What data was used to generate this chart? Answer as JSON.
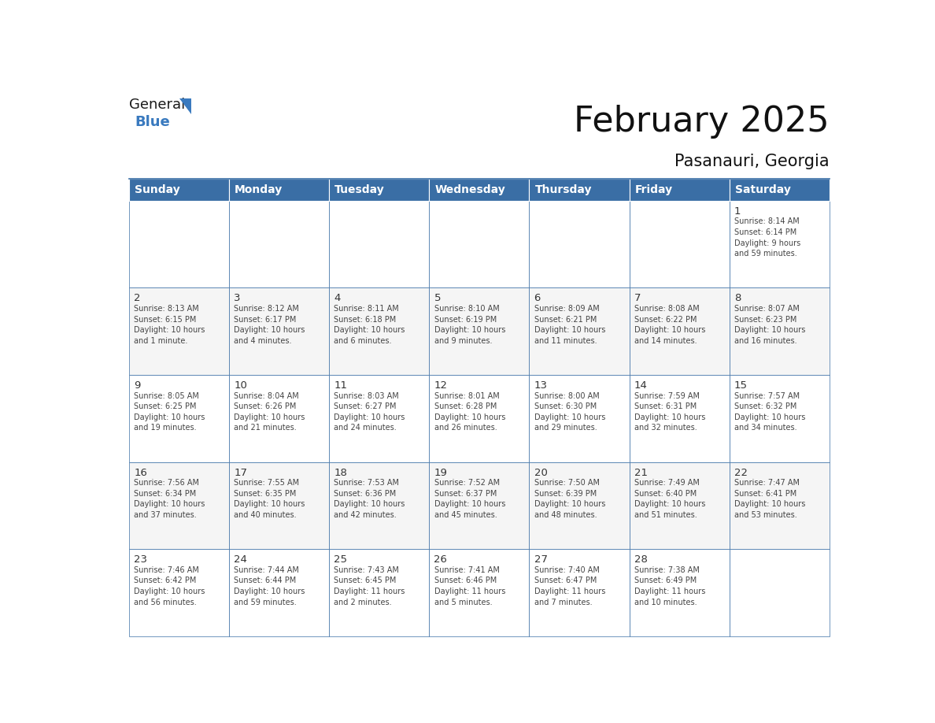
{
  "title": "February 2025",
  "subtitle": "Pasanauri, Georgia",
  "header_color": "#3a6ea5",
  "header_text_color": "#ffffff",
  "cell_bg_even": "#f5f5f5",
  "cell_bg_odd": "#ffffff",
  "border_color": "#3a6ea5",
  "day_number_color": "#333333",
  "info_text_color": "#444444",
  "day_headers": [
    "Sunday",
    "Monday",
    "Tuesday",
    "Wednesday",
    "Thursday",
    "Friday",
    "Saturday"
  ],
  "weeks": [
    [
      {
        "day": "",
        "info": ""
      },
      {
        "day": "",
        "info": ""
      },
      {
        "day": "",
        "info": ""
      },
      {
        "day": "",
        "info": ""
      },
      {
        "day": "",
        "info": ""
      },
      {
        "day": "",
        "info": ""
      },
      {
        "day": "1",
        "info": "Sunrise: 8:14 AM\nSunset: 6:14 PM\nDaylight: 9 hours\nand 59 minutes."
      }
    ],
    [
      {
        "day": "2",
        "info": "Sunrise: 8:13 AM\nSunset: 6:15 PM\nDaylight: 10 hours\nand 1 minute."
      },
      {
        "day": "3",
        "info": "Sunrise: 8:12 AM\nSunset: 6:17 PM\nDaylight: 10 hours\nand 4 minutes."
      },
      {
        "day": "4",
        "info": "Sunrise: 8:11 AM\nSunset: 6:18 PM\nDaylight: 10 hours\nand 6 minutes."
      },
      {
        "day": "5",
        "info": "Sunrise: 8:10 AM\nSunset: 6:19 PM\nDaylight: 10 hours\nand 9 minutes."
      },
      {
        "day": "6",
        "info": "Sunrise: 8:09 AM\nSunset: 6:21 PM\nDaylight: 10 hours\nand 11 minutes."
      },
      {
        "day": "7",
        "info": "Sunrise: 8:08 AM\nSunset: 6:22 PM\nDaylight: 10 hours\nand 14 minutes."
      },
      {
        "day": "8",
        "info": "Sunrise: 8:07 AM\nSunset: 6:23 PM\nDaylight: 10 hours\nand 16 minutes."
      }
    ],
    [
      {
        "day": "9",
        "info": "Sunrise: 8:05 AM\nSunset: 6:25 PM\nDaylight: 10 hours\nand 19 minutes."
      },
      {
        "day": "10",
        "info": "Sunrise: 8:04 AM\nSunset: 6:26 PM\nDaylight: 10 hours\nand 21 minutes."
      },
      {
        "day": "11",
        "info": "Sunrise: 8:03 AM\nSunset: 6:27 PM\nDaylight: 10 hours\nand 24 minutes."
      },
      {
        "day": "12",
        "info": "Sunrise: 8:01 AM\nSunset: 6:28 PM\nDaylight: 10 hours\nand 26 minutes."
      },
      {
        "day": "13",
        "info": "Sunrise: 8:00 AM\nSunset: 6:30 PM\nDaylight: 10 hours\nand 29 minutes."
      },
      {
        "day": "14",
        "info": "Sunrise: 7:59 AM\nSunset: 6:31 PM\nDaylight: 10 hours\nand 32 minutes."
      },
      {
        "day": "15",
        "info": "Sunrise: 7:57 AM\nSunset: 6:32 PM\nDaylight: 10 hours\nand 34 minutes."
      }
    ],
    [
      {
        "day": "16",
        "info": "Sunrise: 7:56 AM\nSunset: 6:34 PM\nDaylight: 10 hours\nand 37 minutes."
      },
      {
        "day": "17",
        "info": "Sunrise: 7:55 AM\nSunset: 6:35 PM\nDaylight: 10 hours\nand 40 minutes."
      },
      {
        "day": "18",
        "info": "Sunrise: 7:53 AM\nSunset: 6:36 PM\nDaylight: 10 hours\nand 42 minutes."
      },
      {
        "day": "19",
        "info": "Sunrise: 7:52 AM\nSunset: 6:37 PM\nDaylight: 10 hours\nand 45 minutes."
      },
      {
        "day": "20",
        "info": "Sunrise: 7:50 AM\nSunset: 6:39 PM\nDaylight: 10 hours\nand 48 minutes."
      },
      {
        "day": "21",
        "info": "Sunrise: 7:49 AM\nSunset: 6:40 PM\nDaylight: 10 hours\nand 51 minutes."
      },
      {
        "day": "22",
        "info": "Sunrise: 7:47 AM\nSunset: 6:41 PM\nDaylight: 10 hours\nand 53 minutes."
      }
    ],
    [
      {
        "day": "23",
        "info": "Sunrise: 7:46 AM\nSunset: 6:42 PM\nDaylight: 10 hours\nand 56 minutes."
      },
      {
        "day": "24",
        "info": "Sunrise: 7:44 AM\nSunset: 6:44 PM\nDaylight: 10 hours\nand 59 minutes."
      },
      {
        "day": "25",
        "info": "Sunrise: 7:43 AM\nSunset: 6:45 PM\nDaylight: 11 hours\nand 2 minutes."
      },
      {
        "day": "26",
        "info": "Sunrise: 7:41 AM\nSunset: 6:46 PM\nDaylight: 11 hours\nand 5 minutes."
      },
      {
        "day": "27",
        "info": "Sunrise: 7:40 AM\nSunset: 6:47 PM\nDaylight: 11 hours\nand 7 minutes."
      },
      {
        "day": "28",
        "info": "Sunrise: 7:38 AM\nSunset: 6:49 PM\nDaylight: 11 hours\nand 10 minutes."
      },
      {
        "day": "",
        "info": ""
      }
    ]
  ],
  "logo_text_general": "General",
  "logo_text_blue": "Blue",
  "logo_color_general": "#1a1a1a",
  "logo_color_blue": "#3a7abf",
  "logo_triangle_color": "#3a7abf",
  "fig_width": 11.88,
  "fig_height": 9.18,
  "dpi": 100
}
